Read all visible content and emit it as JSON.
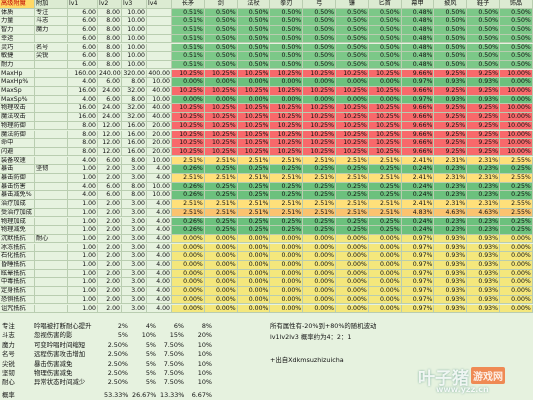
{
  "table": {
    "header": [
      "高级附魔",
      "附加",
      "lv1",
      "lv2",
      "lv3",
      "lv4",
      "长矛",
      "剑",
      "法杖",
      "拳刃",
      "弓",
      "镰",
      "匕首",
      "幕甲",
      "披风",
      "鞋子",
      "饰品"
    ],
    "rows": [
      {
        "color": "#7cc888",
        "cells": [
          "体质",
          "专注",
          "6.00",
          "8.00",
          "10.00",
          "",
          "0.51%",
          "0.50%",
          "0.50%",
          "0.50%",
          "0.50%",
          "0.50%",
          "0.50%",
          "0.48%",
          "0.50%",
          "0.50%",
          "0.50%"
        ]
      },
      {
        "color": "#7cc888",
        "cells": [
          "力量",
          "斗志",
          "6.00",
          "8.00",
          "10.00",
          "",
          "0.51%",
          "0.50%",
          "0.50%",
          "0.50%",
          "0.50%",
          "0.50%",
          "0.50%",
          "0.48%",
          "0.50%",
          "0.50%",
          "0.50%"
        ]
      },
      {
        "color": "#7cc888",
        "cells": [
          "智力",
          "魔力",
          "6.00",
          "8.00",
          "10.00",
          "",
          "0.51%",
          "0.50%",
          "0.50%",
          "0.50%",
          "0.50%",
          "0.50%",
          "0.50%",
          "0.48%",
          "0.50%",
          "0.50%",
          "0.50%"
        ]
      },
      {
        "color": "#7cc888",
        "cells": [
          "幸运",
          "",
          "6.00",
          "8.00",
          "10.00",
          "",
          "0.51%",
          "0.50%",
          "0.50%",
          "0.50%",
          "0.50%",
          "0.50%",
          "0.50%",
          "0.48%",
          "0.50%",
          "0.50%",
          "0.50%"
        ]
      },
      {
        "color": "#7cc888",
        "cells": [
          "灵巧",
          "名号",
          "6.00",
          "8.00",
          "10.00",
          "",
          "0.51%",
          "0.50%",
          "0.50%",
          "0.50%",
          "0.50%",
          "0.50%",
          "0.50%",
          "0.48%",
          "0.50%",
          "0.50%",
          "0.50%"
        ]
      },
      {
        "color": "#7cc888",
        "cells": [
          "敏捷",
          "尖锐",
          "6.00",
          "8.00",
          "10.00",
          "",
          "0.51%",
          "0.50%",
          "0.50%",
          "0.50%",
          "0.50%",
          "0.50%",
          "0.50%",
          "0.48%",
          "0.50%",
          "0.50%",
          "0.50%"
        ]
      },
      {
        "color": "#7cc888",
        "cells": [
          "耐力",
          "",
          "6.00",
          "8.00",
          "10.00",
          "",
          "0.51%",
          "0.50%",
          "0.50%",
          "0.50%",
          "0.50%",
          "0.50%",
          "0.50%",
          "0.48%",
          "0.50%",
          "0.50%",
          "0.50%"
        ]
      },
      {
        "color": "#f8696b",
        "cells": [
          "MaxHp",
          "",
          "160.00",
          "240.00",
          "320.00",
          "400.00",
          "10.25%",
          "10.25%",
          "10.25%",
          "10.25%",
          "10.25%",
          "10.25%",
          "10.25%",
          "9.66%",
          "9.25%",
          "9.25%",
          "10.00%"
        ]
      },
      {
        "color": "#6cc17d",
        "cells": [
          "MaxHp%",
          "",
          "4.00",
          "6.00",
          "8.00",
          "10.00",
          "0.00%",
          "0.00%",
          "0.00%",
          "0.00%",
          "0.00%",
          "0.00%",
          "0.00%",
          "0.97%",
          "0.93%",
          "0.93%",
          "0.00%"
        ]
      },
      {
        "color": "#f8696b",
        "cells": [
          "MaxSp",
          "",
          "16.00",
          "24.00",
          "32.00",
          "40.00",
          "10.25%",
          "10.25%",
          "10.25%",
          "10.25%",
          "10.25%",
          "10.25%",
          "10.25%",
          "9.66%",
          "9.25%",
          "9.25%",
          "10.00%"
        ]
      },
      {
        "color": "#6cc17d",
        "cells": [
          "MaxSp%",
          "",
          "4.00",
          "6.00",
          "8.00",
          "10.00",
          "0.00%",
          "0.00%",
          "0.00%",
          "0.00%",
          "0.00%",
          "0.00%",
          "0.00%",
          "0.97%",
          "0.93%",
          "0.93%",
          "0.00%"
        ]
      },
      {
        "color": "#f8696b",
        "cells": [
          "物理攻击",
          "",
          "16.00",
          "24.00",
          "32.00",
          "40.00",
          "10.25%",
          "10.25%",
          "10.25%",
          "10.25%",
          "10.25%",
          "10.25%",
          "10.25%",
          "9.66%",
          "9.25%",
          "9.25%",
          "10.00%"
        ]
      },
      {
        "color": "#f8696b",
        "cells": [
          "魔法攻击",
          "",
          "16.00",
          "24.00",
          "32.00",
          "40.00",
          "10.25%",
          "10.25%",
          "10.25%",
          "10.25%",
          "10.25%",
          "10.25%",
          "10.25%",
          "9.66%",
          "9.25%",
          "9.25%",
          "10.00%"
        ]
      },
      {
        "color": "#f8696b",
        "cells": [
          "物理防御",
          "",
          "8.00",
          "12.00",
          "16.00",
          "20.00",
          "10.25%",
          "10.25%",
          "10.25%",
          "10.25%",
          "10.25%",
          "10.25%",
          "10.25%",
          "9.66%",
          "9.25%",
          "9.25%",
          "10.00%"
        ]
      },
      {
        "color": "#f8696b",
        "cells": [
          "魔法防御",
          "",
          "8.00",
          "12.00",
          "16.00",
          "20.00",
          "10.25%",
          "10.25%",
          "10.25%",
          "10.25%",
          "10.25%",
          "10.25%",
          "10.25%",
          "9.66%",
          "9.25%",
          "9.25%",
          "10.00%"
        ]
      },
      {
        "color": "#f8696b",
        "cells": [
          "命中",
          "",
          "8.00",
          "12.00",
          "16.00",
          "20.00",
          "10.25%",
          "10.25%",
          "10.25%",
          "10.25%",
          "10.25%",
          "10.25%",
          "10.25%",
          "9.66%",
          "9.25%",
          "9.25%",
          "10.00%"
        ]
      },
      {
        "color": "#f8696b",
        "cells": [
          "闪避",
          "",
          "8.00",
          "12.00",
          "16.00",
          "20.00",
          "10.25%",
          "10.25%",
          "10.25%",
          "10.25%",
          "10.25%",
          "10.25%",
          "10.25%",
          "9.66%",
          "9.25%",
          "9.25%",
          "10.00%"
        ]
      },
      {
        "color": "#ffe07a",
        "cells": [
          "装备攻速",
          "",
          "4.00",
          "6.00",
          "8.00",
          "10.00",
          "2.51%",
          "2.51%",
          "2.51%",
          "2.51%",
          "2.51%",
          "2.51%",
          "2.51%",
          "2.41%",
          "2.31%",
          "2.31%",
          "2.55%"
        ]
      },
      {
        "color": "#6cc17d",
        "cells": [
          "暴击",
          "坚韧",
          "1.00",
          "2.00",
          "3.00",
          "4.00",
          "0.26%",
          "0.25%",
          "0.25%",
          "0.25%",
          "0.25%",
          "0.25%",
          "0.25%",
          "0.24%",
          "0.23%",
          "0.23%",
          "0.25%"
        ]
      },
      {
        "color": "#ffe07a",
        "cells": [
          "暴击防御",
          "",
          "1.00",
          "2.00",
          "3.00",
          "4.00",
          "2.51%",
          "2.51%",
          "2.51%",
          "2.51%",
          "2.51%",
          "2.51%",
          "2.51%",
          "2.41%",
          "2.31%",
          "2.31%",
          "2.55%"
        ]
      },
      {
        "color": "#6cc17d",
        "cells": [
          "暴击伤害",
          "",
          "4.00",
          "6.00",
          "8.00",
          "10.00",
          "0.26%",
          "0.25%",
          "0.25%",
          "0.25%",
          "0.25%",
          "0.25%",
          "0.25%",
          "0.24%",
          "0.23%",
          "0.23%",
          "0.25%"
        ]
      },
      {
        "color": "#6cc17d",
        "cells": [
          "暴击减免%",
          "",
          "4.00",
          "6.00",
          "8.00",
          "10.00",
          "0.26%",
          "0.25%",
          "0.25%",
          "0.25%",
          "0.25%",
          "0.25%",
          "0.25%",
          "0.24%",
          "0.23%",
          "0.23%",
          "0.25%"
        ]
      },
      {
        "color": "#ffe07a",
        "cells": [
          "治疗加成",
          "",
          "1.00",
          "2.00",
          "3.00",
          "4.00",
          "2.51%",
          "2.51%",
          "2.51%",
          "2.51%",
          "2.51%",
          "2.51%",
          "2.51%",
          "2.41%",
          "2.31%",
          "2.31%",
          "2.55%"
        ]
      },
      {
        "color": "#fbc36f",
        "cells": [
          "受治疗加成",
          "",
          "1.00",
          "2.00",
          "3.00",
          "4.00",
          "2.51%",
          "2.51%",
          "2.51%",
          "2.51%",
          "2.51%",
          "2.51%",
          "2.51%",
          "4.83%",
          "4.63%",
          "4.63%",
          "2.55%"
        ]
      },
      {
        "color": "#6cc17d",
        "cells": [
          "物理加成",
          "",
          "1.00",
          "2.00",
          "3.00",
          "4.00",
          "0.26%",
          "0.25%",
          "0.25%",
          "0.25%",
          "0.25%",
          "0.25%",
          "0.25%",
          "0.24%",
          "0.23%",
          "0.23%",
          "0.25%"
        ]
      },
      {
        "color": "#6cc17d",
        "cells": [
          "物理减免",
          "",
          "1.00",
          "2.00",
          "3.00",
          "4.00",
          "0.26%",
          "0.25%",
          "0.25%",
          "0.25%",
          "0.25%",
          "0.25%",
          "0.25%",
          "0.24%",
          "0.23%",
          "0.23%",
          "0.25%"
        ]
      },
      {
        "color": "#f4e77c",
        "cells": [
          "沉默抵抗",
          "耐心",
          "1.00",
          "2.00",
          "3.00",
          "4.00",
          "0.00%",
          "0.00%",
          "0.00%",
          "0.00%",
          "0.00%",
          "0.00%",
          "0.00%",
          "0.97%",
          "0.93%",
          "0.93%",
          "0.00%"
        ]
      },
      {
        "color": "#f4e77c",
        "cells": [
          "冰冻抵抗",
          "",
          "1.00",
          "2.00",
          "3.00",
          "4.00",
          "0.00%",
          "0.00%",
          "0.00%",
          "0.00%",
          "0.00%",
          "0.00%",
          "0.00%",
          "0.97%",
          "0.93%",
          "0.93%",
          "0.00%"
        ]
      },
      {
        "color": "#f4e77c",
        "cells": [
          "石化抵抗",
          "",
          "1.00",
          "2.00",
          "3.00",
          "4.00",
          "0.00%",
          "0.00%",
          "0.00%",
          "0.00%",
          "0.00%",
          "0.00%",
          "0.00%",
          "0.97%",
          "0.93%",
          "0.93%",
          "0.00%"
        ]
      },
      {
        "color": "#f4e77c",
        "cells": [
          "昏睡抵抗",
          "",
          "1.00",
          "2.00",
          "3.00",
          "4.00",
          "0.00%",
          "0.00%",
          "0.00%",
          "0.00%",
          "0.00%",
          "0.00%",
          "0.00%",
          "0.97%",
          "0.93%",
          "0.93%",
          "0.00%"
        ]
      },
      {
        "color": "#f4e77c",
        "cells": [
          "眩晕抵抗",
          "",
          "1.00",
          "2.00",
          "3.00",
          "4.00",
          "0.00%",
          "0.00%",
          "0.00%",
          "0.00%",
          "0.00%",
          "0.00%",
          "0.00%",
          "0.97%",
          "0.93%",
          "0.93%",
          "0.00%"
        ]
      },
      {
        "color": "#f4e77c",
        "cells": [
          "中毒抵抗",
          "",
          "1.00",
          "2.00",
          "3.00",
          "4.00",
          "0.00%",
          "0.00%",
          "0.00%",
          "0.00%",
          "0.00%",
          "0.00%",
          "0.00%",
          "0.97%",
          "0.93%",
          "0.93%",
          "0.00%"
        ]
      },
      {
        "color": "#f4e77c",
        "cells": [
          "定身抵抗",
          "",
          "1.00",
          "2.00",
          "3.00",
          "4.00",
          "0.00%",
          "0.00%",
          "0.00%",
          "0.00%",
          "0.00%",
          "0.00%",
          "0.00%",
          "0.97%",
          "0.93%",
          "0.93%",
          "0.00%"
        ]
      },
      {
        "color": "#f4e77c",
        "cells": [
          "恐惧抵抗",
          "",
          "1.00",
          "2.00",
          "3.00",
          "4.00",
          "0.00%",
          "0.00%",
          "0.00%",
          "0.00%",
          "0.00%",
          "0.00%",
          "0.00%",
          "0.97%",
          "0.93%",
          "0.93%",
          "0.00%"
        ]
      },
      {
        "color": "#f4e77c",
        "cells": [
          "诅咒抵抗",
          "",
          "1.00",
          "2.00",
          "3.00",
          "4.00",
          "0.00%",
          "0.00%",
          "0.00%",
          "0.00%",
          "0.00%",
          "0.00%",
          "0.00%",
          "0.97%",
          "0.93%",
          "0.93%",
          "0.00%"
        ]
      }
    ]
  },
  "effects": [
    [
      "专注",
      "吟唱被打断耐心提升",
      "2%",
      "4%",
      "6%",
      "8%"
    ],
    [
      "斗志",
      "忽视伤害的影",
      "5%",
      "10%",
      "15%",
      "20%"
    ],
    [
      "魔力",
      "可变吟唱时间缩短",
      "2.50%",
      "5%",
      "7.50%",
      "10%"
    ],
    [
      "名号",
      "远程伤害攻击增加",
      "2.50%",
      "5%",
      "7.50%",
      "10%"
    ],
    [
      "尖锐",
      "暴击伤害减免",
      "2.50%",
      "5%",
      "7.50%",
      "10%"
    ],
    [
      "坚韧",
      "物理伤害减免",
      "2.50%",
      "5%",
      "7.50%",
      "10%"
    ],
    [
      "耐心",
      "异常状态时间减少",
      "2.50%",
      "5%",
      "7.50%",
      "10%"
    ]
  ],
  "probability": {
    "label": "概率",
    "values": [
      "53.33%",
      "26.67%",
      "13.33%",
      "6.67%"
    ]
  },
  "notes": [
    "所有属性有-20%到+80%的随机波动",
    "lv1lv2lv3 概率约为4：2：1",
    "+出自Xdkmsuzhizuicha"
  ],
  "watermark": {
    "brand": "叶子猪",
    "tag": "游戏网",
    "url": "www.yzz.cn"
  }
}
